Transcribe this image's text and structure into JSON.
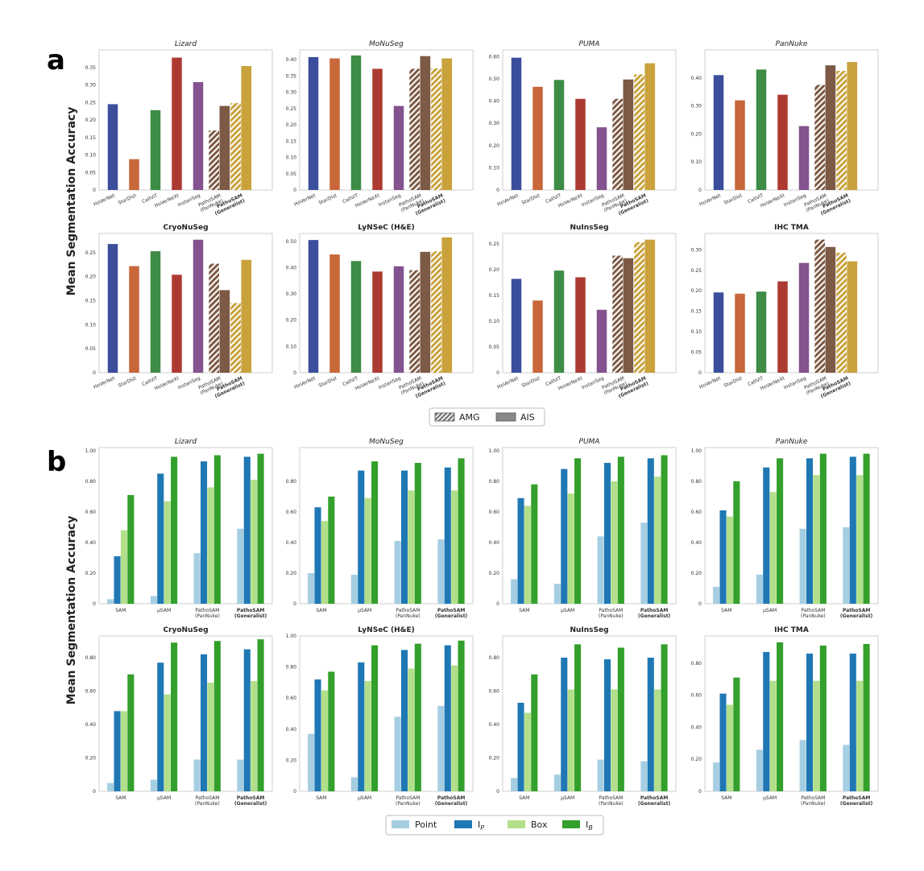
{
  "panels": [
    {
      "letter": "a",
      "ylabel": "Mean Segmentation Accuracy"
    },
    {
      "letter": "b",
      "ylabel": "Mean Segmentation Accuracy"
    }
  ],
  "colors": {
    "HoVerNet": "#3a4e9c",
    "StarDist": "#c8673a",
    "CellViT": "#3e8c45",
    "HoVerNeXt": "#ad3a32",
    "InstanSeg": "#84528f",
    "PathoSAM_PanNuke": "#7d5a45",
    "PathoSAM_Generalist": "#c9a23c",
    "Point": "#a6cee3",
    "I_P": "#1f78b4",
    "Box": "#b2df8a",
    "I_B": "#33a02c"
  },
  "legend_a": [
    {
      "label": "AMG",
      "style": "hatched"
    },
    {
      "label": "AIS",
      "style": "solid"
    }
  ],
  "legend_b": [
    {
      "label": "Point",
      "color": "#a6cee3"
    },
    {
      "label": "I",
      "sub": "P",
      "color": "#1f78b4"
    },
    {
      "label": "Box",
      "color": "#b2df8a"
    },
    {
      "label": "I",
      "sub": "B",
      "color": "#33a02c"
    }
  ],
  "chart_data": [
    {
      "panel": "a",
      "type": "bar",
      "title": "Lizard",
      "title_style": "italic",
      "ylim": [
        0,
        0.4
      ],
      "yticks": [
        "0",
        "0.05",
        "0.10",
        "0.15",
        "0.20",
        "0.25",
        "0.30",
        "0.35"
      ],
      "categories": [
        "HoVerNet",
        "StarDist",
        "CellViT",
        "HoVerNeXt",
        "InstanSeg",
        "PathoSAM (PanNuke)",
        "PathoSAM (Generalist)"
      ],
      "values": [
        [
          0.245
        ],
        [
          0.088
        ],
        [
          0.228
        ],
        [
          0.378
        ],
        [
          0.308
        ],
        [
          0.17,
          0.24
        ],
        [
          0.248,
          0.354
        ]
      ]
    },
    {
      "panel": "a",
      "type": "bar",
      "title": "MoNuSeg",
      "title_style": "italic",
      "ylim": [
        0,
        0.43
      ],
      "yticks": [
        "0",
        "0.05",
        "0.10",
        "0.15",
        "0.20",
        "0.25",
        "0.30",
        "0.35",
        "0.40"
      ],
      "categories": [
        "HoVerNet",
        "StarDist",
        "CellViT",
        "HoVerNeXt",
        "InstanSeg",
        "PathoSAM (PanNuke)",
        "PathoSAM (Generalist)"
      ],
      "values": [
        [
          0.408
        ],
        [
          0.404
        ],
        [
          0.413
        ],
        [
          0.372
        ],
        [
          0.258
        ],
        [
          0.372,
          0.411
        ],
        [
          0.373,
          0.404
        ]
      ]
    },
    {
      "panel": "a",
      "type": "bar",
      "title": "PUMA",
      "title_style": "italic",
      "ylim": [
        0,
        0.63
      ],
      "yticks": [
        "0",
        "0.10",
        "0.20",
        "0.30",
        "0.40",
        "0.50",
        "0.60"
      ],
      "categories": [
        "HoVerNet",
        "StarDist",
        "CellViT",
        "HoVerNeXt",
        "InstanSeg",
        "PathoSAM (PanNuke)",
        "PathoSAM (Generalist)"
      ],
      "values": [
        [
          0.595
        ],
        [
          0.464
        ],
        [
          0.495
        ],
        [
          0.41
        ],
        [
          0.282
        ],
        [
          0.41,
          0.497
        ],
        [
          0.52,
          0.57
        ]
      ]
    },
    {
      "panel": "a",
      "type": "bar",
      "title": "PanNuke",
      "title_style": "italic",
      "ylim": [
        0,
        0.5
      ],
      "yticks": [
        "0",
        "0.10",
        "0.20",
        "0.30",
        "0.40"
      ],
      "categories": [
        "HoVerNet",
        "StarDist",
        "CellViT",
        "HoVerNeXt",
        "InstanSeg",
        "PathoSAM (PanNuke)",
        "PathoSAM (Generalist)"
      ],
      "values": [
        [
          0.41
        ],
        [
          0.32
        ],
        [
          0.43
        ],
        [
          0.34
        ],
        [
          0.228
        ],
        [
          0.375,
          0.445
        ],
        [
          0.425,
          0.457
        ]
      ]
    },
    {
      "panel": "a",
      "type": "bar",
      "title": "CryoNuSeg",
      "title_style": "bold",
      "ylim": [
        0,
        0.29
      ],
      "yticks": [
        "0",
        "0.05",
        "0.10",
        "0.15",
        "0.20",
        "0.25"
      ],
      "categories": [
        "HoVerNet",
        "StarDist",
        "CellViT",
        "HoVerNeXt",
        "InstanSeg",
        "PathoSAM (PanNuke)",
        "PathoSAM (Generalist)"
      ],
      "values": [
        [
          0.268
        ],
        [
          0.222
        ],
        [
          0.253
        ],
        [
          0.204
        ],
        [
          0.277
        ],
        [
          0.227,
          0.172
        ],
        [
          0.145,
          0.235
        ]
      ]
    },
    {
      "panel": "a",
      "type": "bar",
      "title": "LyNSeC (H&E)",
      "title_style": "bold",
      "ylim": [
        0,
        0.53
      ],
      "yticks": [
        "0",
        "0.10",
        "0.20",
        "0.30",
        "0.40",
        "0.50"
      ],
      "categories": [
        "HoVerNet",
        "StarDist",
        "CellViT",
        "HoVerNeXt",
        "InstanSeg",
        "PathoSAM (PanNuke)",
        "PathoSAM (Generalist)"
      ],
      "values": [
        [
          0.505
        ],
        [
          0.45
        ],
        [
          0.425
        ],
        [
          0.385
        ],
        [
          0.405
        ],
        [
          0.39,
          0.46
        ],
        [
          0.462,
          0.515
        ]
      ]
    },
    {
      "panel": "a",
      "type": "bar",
      "title": "NuInsSeg",
      "title_style": "bold",
      "ylim": [
        0,
        0.27
      ],
      "yticks": [
        "0",
        "0.05",
        "0.10",
        "0.15",
        "0.20",
        "0.25"
      ],
      "categories": [
        "HoVerNet",
        "StarDist",
        "CellViT",
        "HoVerNeXt",
        "InstanSeg",
        "PathoSAM (PanNuke)",
        "PathoSAM (Generalist)"
      ],
      "values": [
        [
          0.182
        ],
        [
          0.14
        ],
        [
          0.198
        ],
        [
          0.185
        ],
        [
          0.122
        ],
        [
          0.227,
          0.222
        ],
        [
          0.253,
          0.258
        ]
      ]
    },
    {
      "panel": "a",
      "type": "bar",
      "title": "IHC TMA",
      "title_style": "bold",
      "ylim": [
        0,
        0.34
      ],
      "yticks": [
        "0",
        "0.05",
        "0.10",
        "0.15",
        "0.20",
        "0.25",
        "0.30"
      ],
      "categories": [
        "HoVerNet",
        "StarDist",
        "CellViT",
        "HoVerNeXt",
        "InstanSeg",
        "PathoSAM (PanNuke)",
        "PathoSAM (Generalist)"
      ],
      "values": [
        [
          0.196
        ],
        [
          0.193
        ],
        [
          0.198
        ],
        [
          0.223
        ],
        [
          0.268
        ],
        [
          0.325,
          0.307
        ],
        [
          0.293,
          0.272
        ]
      ]
    },
    {
      "panel": "b",
      "type": "bar",
      "title": "Lizard",
      "title_style": "italic",
      "ylim": [
        0,
        1.02
      ],
      "yticks": [
        "0",
        "0.20",
        "0.40",
        "0.60",
        "0.80",
        "1.00"
      ],
      "categories": [
        "SAM",
        "µSAM",
        "PathoSAM (PanNuke)",
        "PathoSAM (Generalist)"
      ],
      "series": [
        {
          "name": "Point",
          "values": [
            0.03,
            0.05,
            0.33,
            0.49
          ]
        },
        {
          "name": "I_P",
          "values": [
            0.31,
            0.85,
            0.93,
            0.96
          ]
        },
        {
          "name": "Box",
          "values": [
            0.48,
            0.67,
            0.76,
            0.81
          ]
        },
        {
          "name": "I_B",
          "values": [
            0.71,
            0.96,
            0.97,
            0.98
          ]
        }
      ]
    },
    {
      "panel": "b",
      "type": "bar",
      "title": "MoNuSeg",
      "title_style": "italic",
      "ylim": [
        0,
        1.02
      ],
      "yticks": [
        "0",
        "0.20",
        "0.40",
        "0.60",
        "0.80"
      ],
      "categories": [
        "SAM",
        "µSAM",
        "PathoSAM (PanNuke)",
        "PathoSAM (Generalist)"
      ],
      "series": [
        {
          "name": "Point",
          "values": [
            0.2,
            0.19,
            0.41,
            0.42
          ]
        },
        {
          "name": "I_P",
          "values": [
            0.63,
            0.87,
            0.87,
            0.89
          ]
        },
        {
          "name": "Box",
          "values": [
            0.54,
            0.69,
            0.74,
            0.74
          ]
        },
        {
          "name": "I_B",
          "values": [
            0.7,
            0.93,
            0.92,
            0.95
          ]
        }
      ]
    },
    {
      "panel": "b",
      "type": "bar",
      "title": "PUMA",
      "title_style": "italic",
      "ylim": [
        0,
        1.02
      ],
      "yticks": [
        "0",
        "0.20",
        "0.40",
        "0.60",
        "0.80",
        "1.00"
      ],
      "categories": [
        "SAM",
        "µSAM",
        "PathoSAM (PanNuke)",
        "PathoSAM (Generalist)"
      ],
      "series": [
        {
          "name": "Point",
          "values": [
            0.16,
            0.13,
            0.44,
            0.53
          ]
        },
        {
          "name": "I_P",
          "values": [
            0.69,
            0.88,
            0.92,
            0.95
          ]
        },
        {
          "name": "Box",
          "values": [
            0.64,
            0.72,
            0.8,
            0.83
          ]
        },
        {
          "name": "I_B",
          "values": [
            0.78,
            0.95,
            0.96,
            0.97
          ]
        }
      ]
    },
    {
      "panel": "b",
      "type": "bar",
      "title": "PanNuke",
      "title_style": "italic",
      "ylim": [
        0,
        1.02
      ],
      "yticks": [
        "0",
        "0.20",
        "0.40",
        "0.60",
        "0.80",
        "1.00"
      ],
      "categories": [
        "SAM",
        "µSAM",
        "PathoSAM (PanNuke)",
        "PathoSAM (Generalist)"
      ],
      "series": [
        {
          "name": "Point",
          "values": [
            0.11,
            0.19,
            0.49,
            0.5
          ]
        },
        {
          "name": "I_P",
          "values": [
            0.61,
            0.89,
            0.95,
            0.96
          ]
        },
        {
          "name": "Box",
          "values": [
            0.57,
            0.73,
            0.84,
            0.84
          ]
        },
        {
          "name": "I_B",
          "values": [
            0.8,
            0.95,
            0.98,
            0.98
          ]
        }
      ]
    },
    {
      "panel": "b",
      "type": "bar",
      "title": "CryoNuSeg",
      "title_style": "bold",
      "ylim": [
        0,
        0.93
      ],
      "yticks": [
        "0",
        "0.20",
        "0.40",
        "0.60",
        "0.80"
      ],
      "categories": [
        "SAM",
        "µSAM",
        "PathoSAM (PanNuke)",
        "PathoSAM (Generalist)"
      ],
      "series": [
        {
          "name": "Point",
          "values": [
            0.05,
            0.07,
            0.19,
            0.19
          ]
        },
        {
          "name": "I_P",
          "values": [
            0.48,
            0.77,
            0.82,
            0.85
          ]
        },
        {
          "name": "Box",
          "values": [
            0.48,
            0.58,
            0.65,
            0.66
          ]
        },
        {
          "name": "I_B",
          "values": [
            0.7,
            0.89,
            0.9,
            0.91
          ]
        }
      ]
    },
    {
      "panel": "b",
      "type": "bar",
      "title": "LyNSeC (H&E)",
      "title_style": "bold",
      "ylim": [
        0,
        1.0
      ],
      "yticks": [
        "0",
        "0.20",
        "0.40",
        "0.60",
        "0.80",
        "1.00"
      ],
      "categories": [
        "SAM",
        "µSAM",
        "PathoSAM (PanNuke)",
        "PathoSAM (Generalist)"
      ],
      "series": [
        {
          "name": "Point",
          "values": [
            0.37,
            0.09,
            0.48,
            0.55
          ]
        },
        {
          "name": "I_P",
          "values": [
            0.72,
            0.83,
            0.91,
            0.94
          ]
        },
        {
          "name": "Box",
          "values": [
            0.65,
            0.71,
            0.79,
            0.81
          ]
        },
        {
          "name": "I_B",
          "values": [
            0.77,
            0.94,
            0.95,
            0.97
          ]
        }
      ]
    },
    {
      "panel": "b",
      "type": "bar",
      "title": "NuInsSeg",
      "title_style": "bold",
      "ylim": [
        0,
        0.93
      ],
      "yticks": [
        "0",
        "0.20",
        "0.40",
        "0.60",
        "0.80"
      ],
      "categories": [
        "SAM",
        "µSAM",
        "PathoSAM (PanNuke)",
        "PathoSAM (Generalist)"
      ],
      "series": [
        {
          "name": "Point",
          "values": [
            0.08,
            0.1,
            0.19,
            0.18
          ]
        },
        {
          "name": "I_P",
          "values": [
            0.53,
            0.8,
            0.79,
            0.8
          ]
        },
        {
          "name": "Box",
          "values": [
            0.47,
            0.61,
            0.61,
            0.61
          ]
        },
        {
          "name": "I_B",
          "values": [
            0.7,
            0.88,
            0.86,
            0.88
          ]
        }
      ]
    },
    {
      "panel": "b",
      "type": "bar",
      "title": "IHC TMA",
      "title_style": "bold",
      "ylim": [
        0,
        0.97
      ],
      "yticks": [
        "0",
        "0.20",
        "0.40",
        "0.60",
        "0.80"
      ],
      "categories": [
        "SAM",
        "µSAM",
        "PathoSAM (PanNuke)",
        "PathoSAM (Generalist)"
      ],
      "series": [
        {
          "name": "Point",
          "values": [
            0.18,
            0.26,
            0.32,
            0.29
          ]
        },
        {
          "name": "I_P",
          "values": [
            0.61,
            0.87,
            0.86,
            0.86
          ]
        },
        {
          "name": "Box",
          "values": [
            0.54,
            0.69,
            0.69,
            0.69
          ]
        },
        {
          "name": "I_B",
          "values": [
            0.71,
            0.93,
            0.91,
            0.92
          ]
        }
      ]
    }
  ]
}
